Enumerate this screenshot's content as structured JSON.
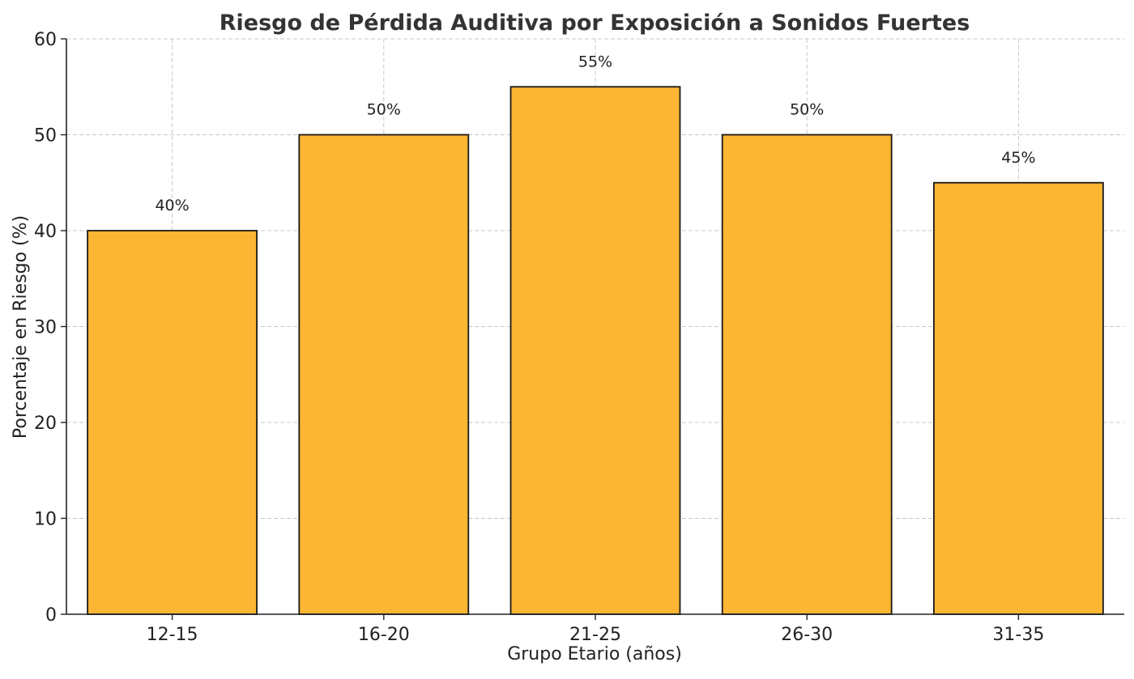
{
  "chart_data": {
    "type": "bar",
    "title": "Riesgo de Pérdida Auditiva por Exposición a Sonidos Fuertes",
    "xlabel": "Grupo Etario (años)",
    "ylabel": "Porcentaje en Riesgo (%)",
    "categories": [
      "12-15",
      "16-20",
      "21-25",
      "26-30",
      "31-35"
    ],
    "values": [
      40,
      50,
      55,
      50,
      45
    ],
    "data_labels": [
      "40%",
      "50%",
      "55%",
      "50%",
      "45%"
    ],
    "ylim": [
      0,
      60
    ],
    "yticks": [
      0,
      10,
      20,
      30,
      40,
      50,
      60
    ],
    "bar_color": "#FDB534",
    "edge_color": "#1a1a1a",
    "grid": true
  }
}
